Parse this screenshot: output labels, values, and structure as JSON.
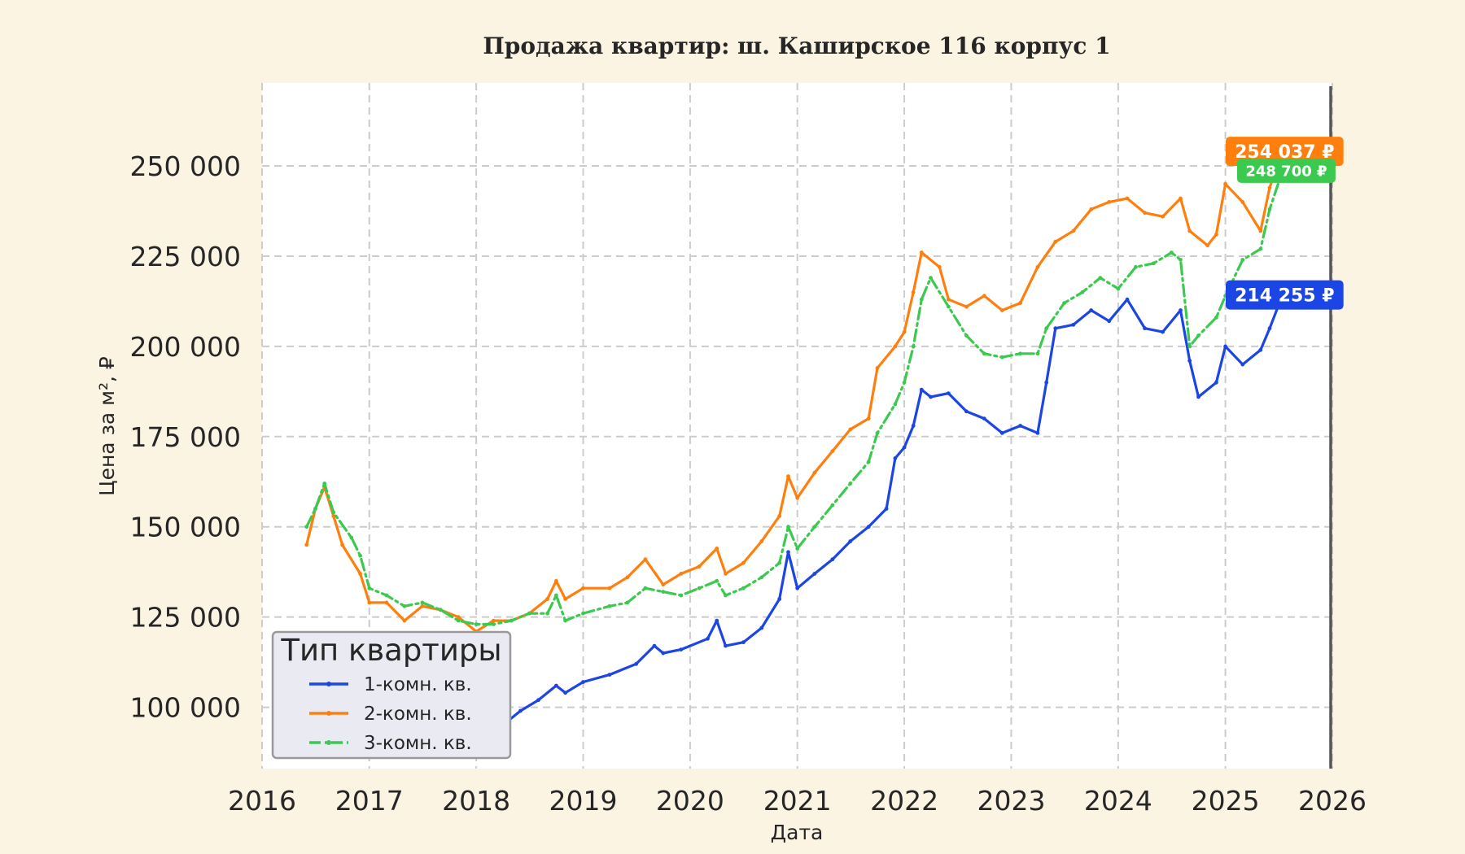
{
  "chart_data": {
    "type": "line",
    "title": "Продажа квартир: ш. Каширское 116 корпус 1",
    "xlabel": "Дата",
    "ylabel": "Цена за м², ₽",
    "xlim": [
      "2016-01-01",
      "2026-01-01"
    ],
    "ylim": [
      83000,
      273000
    ],
    "x_ticks": [
      "2016",
      "2017",
      "2018",
      "2019",
      "2020",
      "2021",
      "2022",
      "2023",
      "2024",
      "2025",
      "2026"
    ],
    "y_ticks": [
      "100 000",
      "125 000",
      "150 000",
      "175 000",
      "200 000",
      "225 000",
      "250 000"
    ],
    "y_tick_values": [
      100000,
      125000,
      150000,
      175000,
      200000,
      225000,
      250000
    ],
    "grid": true,
    "legend": {
      "title": "Тип квартиры",
      "position": "bottom-left"
    },
    "series": [
      {
        "name": "1-комн. кв.",
        "color": "#1b45e4",
        "style": "solid",
        "end_label": "214 255 ₽",
        "points": [
          [
            "2016-08-01",
            109000
          ],
          [
            "2016-09-15",
            106000
          ],
          [
            "2016-11-01",
            103000
          ],
          [
            "2017-01-01",
            101000
          ],
          [
            "2017-03-01",
            99000
          ],
          [
            "2017-06-01",
            98000
          ],
          [
            "2017-09-01",
            96500
          ],
          [
            "2017-12-01",
            95000
          ],
          [
            "2018-02-01",
            93000
          ],
          [
            "2018-04-01",
            95000
          ],
          [
            "2018-06-01",
            99000
          ],
          [
            "2018-08-01",
            102000
          ],
          [
            "2018-10-01",
            106000
          ],
          [
            "2018-11-01",
            104000
          ],
          [
            "2019-01-01",
            107000
          ],
          [
            "2019-04-01",
            109000
          ],
          [
            "2019-07-01",
            112000
          ],
          [
            "2019-09-01",
            117000
          ],
          [
            "2019-10-01",
            115000
          ],
          [
            "2019-12-01",
            116000
          ],
          [
            "2020-03-01",
            119000
          ],
          [
            "2020-04-01",
            124000
          ],
          [
            "2020-05-01",
            117000
          ],
          [
            "2020-07-01",
            118000
          ],
          [
            "2020-09-01",
            122000
          ],
          [
            "2020-11-01",
            130000
          ],
          [
            "2020-12-01",
            143000
          ],
          [
            "2021-01-01",
            133000
          ],
          [
            "2021-03-01",
            137000
          ],
          [
            "2021-05-01",
            141000
          ],
          [
            "2021-07-01",
            146000
          ],
          [
            "2021-09-01",
            150000
          ],
          [
            "2021-11-01",
            155000
          ],
          [
            "2021-12-01",
            169000
          ],
          [
            "2022-01-01",
            172000
          ],
          [
            "2022-02-01",
            178000
          ],
          [
            "2022-03-01",
            188000
          ],
          [
            "2022-04-01",
            186000
          ],
          [
            "2022-06-01",
            187000
          ],
          [
            "2022-08-01",
            182000
          ],
          [
            "2022-10-01",
            180000
          ],
          [
            "2022-12-01",
            176000
          ],
          [
            "2023-02-01",
            178000
          ],
          [
            "2023-04-01",
            176000
          ],
          [
            "2023-05-01",
            190000
          ],
          [
            "2023-06-01",
            205000
          ],
          [
            "2023-08-01",
            206000
          ],
          [
            "2023-10-01",
            210000
          ],
          [
            "2023-12-01",
            207000
          ],
          [
            "2024-02-01",
            213000
          ],
          [
            "2024-04-01",
            205000
          ],
          [
            "2024-06-01",
            204000
          ],
          [
            "2024-08-01",
            210000
          ],
          [
            "2024-09-01",
            196000
          ],
          [
            "2024-10-01",
            186000
          ],
          [
            "2024-12-01",
            190000
          ],
          [
            "2025-01-01",
            200000
          ],
          [
            "2025-03-01",
            195000
          ],
          [
            "2025-05-01",
            199000
          ],
          [
            "2025-06-01",
            205000
          ],
          [
            "2025-07-15",
            214255
          ]
        ]
      },
      {
        "name": "2-комн. кв.",
        "color": "#ff7f0e",
        "style": "solid",
        "end_label": "254 037 ₽",
        "points": [
          [
            "2016-06-01",
            145000
          ],
          [
            "2016-07-01",
            155000
          ],
          [
            "2016-08-01",
            161000
          ],
          [
            "2016-09-01",
            153000
          ],
          [
            "2016-10-01",
            145000
          ],
          [
            "2016-12-01",
            137000
          ],
          [
            "2017-01-01",
            129000
          ],
          [
            "2017-03-01",
            129000
          ],
          [
            "2017-05-01",
            124000
          ],
          [
            "2017-07-01",
            128000
          ],
          [
            "2017-09-01",
            127000
          ],
          [
            "2017-11-01",
            125000
          ],
          [
            "2018-01-01",
            121000
          ],
          [
            "2018-03-01",
            124000
          ],
          [
            "2018-05-01",
            124000
          ],
          [
            "2018-07-01",
            126000
          ],
          [
            "2018-09-01",
            130000
          ],
          [
            "2018-10-01",
            135000
          ],
          [
            "2018-11-01",
            130000
          ],
          [
            "2019-01-01",
            133000
          ],
          [
            "2019-04-01",
            133000
          ],
          [
            "2019-06-01",
            136000
          ],
          [
            "2019-08-01",
            141000
          ],
          [
            "2019-10-01",
            134000
          ],
          [
            "2019-12-01",
            137000
          ],
          [
            "2020-02-01",
            139000
          ],
          [
            "2020-04-01",
            144000
          ],
          [
            "2020-05-01",
            137000
          ],
          [
            "2020-07-01",
            140000
          ],
          [
            "2020-09-01",
            146000
          ],
          [
            "2020-11-01",
            153000
          ],
          [
            "2020-12-01",
            164000
          ],
          [
            "2021-01-01",
            158000
          ],
          [
            "2021-03-01",
            165000
          ],
          [
            "2021-05-01",
            171000
          ],
          [
            "2021-07-01",
            177000
          ],
          [
            "2021-09-01",
            180000
          ],
          [
            "2021-10-01",
            194000
          ],
          [
            "2021-12-01",
            200000
          ],
          [
            "2022-01-01",
            204000
          ],
          [
            "2022-02-01",
            215000
          ],
          [
            "2022-03-01",
            226000
          ],
          [
            "2022-05-01",
            222000
          ],
          [
            "2022-06-01",
            213000
          ],
          [
            "2022-08-01",
            211000
          ],
          [
            "2022-10-01",
            214000
          ],
          [
            "2022-12-01",
            210000
          ],
          [
            "2023-02-01",
            212000
          ],
          [
            "2023-04-01",
            222000
          ],
          [
            "2023-06-01",
            229000
          ],
          [
            "2023-08-01",
            232000
          ],
          [
            "2023-10-01",
            238000
          ],
          [
            "2023-12-01",
            240000
          ],
          [
            "2024-02-01",
            241000
          ],
          [
            "2024-04-01",
            237000
          ],
          [
            "2024-06-01",
            236000
          ],
          [
            "2024-08-01",
            241000
          ],
          [
            "2024-09-01",
            232000
          ],
          [
            "2024-11-01",
            228000
          ],
          [
            "2024-12-01",
            231000
          ],
          [
            "2025-01-01",
            245000
          ],
          [
            "2025-03-01",
            240000
          ],
          [
            "2025-05-01",
            232000
          ],
          [
            "2025-06-01",
            244000
          ],
          [
            "2025-07-15",
            254037
          ]
        ]
      },
      {
        "name": "3-комн. кв.",
        "color": "#3cc94f",
        "style": "dashdot",
        "end_label": "248 700 ₽",
        "points": [
          [
            "2016-06-01",
            150000
          ],
          [
            "2016-07-01",
            155000
          ],
          [
            "2016-08-01",
            162000
          ],
          [
            "2016-09-01",
            154000
          ],
          [
            "2016-11-01",
            147000
          ],
          [
            "2016-12-01",
            142000
          ],
          [
            "2017-01-01",
            133000
          ],
          [
            "2017-03-01",
            131000
          ],
          [
            "2017-05-01",
            128000
          ],
          [
            "2017-07-01",
            129000
          ],
          [
            "2017-09-01",
            127000
          ],
          [
            "2017-11-01",
            124000
          ],
          [
            "2018-01-01",
            123000
          ],
          [
            "2018-03-01",
            123000
          ],
          [
            "2018-05-01",
            124000
          ],
          [
            "2018-07-01",
            126000
          ],
          [
            "2018-09-01",
            126000
          ],
          [
            "2018-10-01",
            131000
          ],
          [
            "2018-11-01",
            124000
          ],
          [
            "2019-01-01",
            126000
          ],
          [
            "2019-04-01",
            128000
          ],
          [
            "2019-06-01",
            129000
          ],
          [
            "2019-08-01",
            133000
          ],
          [
            "2019-10-01",
            132000
          ],
          [
            "2019-12-01",
            131000
          ],
          [
            "2020-02-01",
            133000
          ],
          [
            "2020-04-01",
            135000
          ],
          [
            "2020-05-01",
            131000
          ],
          [
            "2020-07-01",
            133000
          ],
          [
            "2020-09-01",
            136000
          ],
          [
            "2020-11-01",
            140000
          ],
          [
            "2020-12-01",
            150000
          ],
          [
            "2021-01-01",
            144000
          ],
          [
            "2021-03-01",
            150000
          ],
          [
            "2021-05-01",
            156000
          ],
          [
            "2021-07-01",
            162000
          ],
          [
            "2021-09-01",
            168000
          ],
          [
            "2021-10-01",
            176000
          ],
          [
            "2021-12-01",
            184000
          ],
          [
            "2022-01-01",
            190000
          ],
          [
            "2022-02-01",
            200000
          ],
          [
            "2022-03-01",
            213000
          ],
          [
            "2022-04-01",
            219000
          ],
          [
            "2022-06-01",
            211000
          ],
          [
            "2022-08-01",
            203000
          ],
          [
            "2022-10-01",
            198000
          ],
          [
            "2022-12-01",
            197000
          ],
          [
            "2023-02-01",
            198000
          ],
          [
            "2023-04-01",
            198000
          ],
          [
            "2023-05-01",
            205000
          ],
          [
            "2023-07-01",
            212000
          ],
          [
            "2023-09-01",
            215000
          ],
          [
            "2023-11-01",
            219000
          ],
          [
            "2024-01-01",
            216000
          ],
          [
            "2024-03-01",
            222000
          ],
          [
            "2024-05-01",
            223000
          ],
          [
            "2024-07-01",
            226000
          ],
          [
            "2024-08-01",
            224000
          ],
          [
            "2024-09-01",
            200000
          ],
          [
            "2024-10-01",
            203000
          ],
          [
            "2024-12-01",
            208000
          ],
          [
            "2025-01-01",
            214000
          ],
          [
            "2025-03-01",
            224000
          ],
          [
            "2025-05-01",
            227000
          ],
          [
            "2025-06-01",
            238000
          ],
          [
            "2025-07-15",
            248700
          ]
        ]
      }
    ]
  }
}
